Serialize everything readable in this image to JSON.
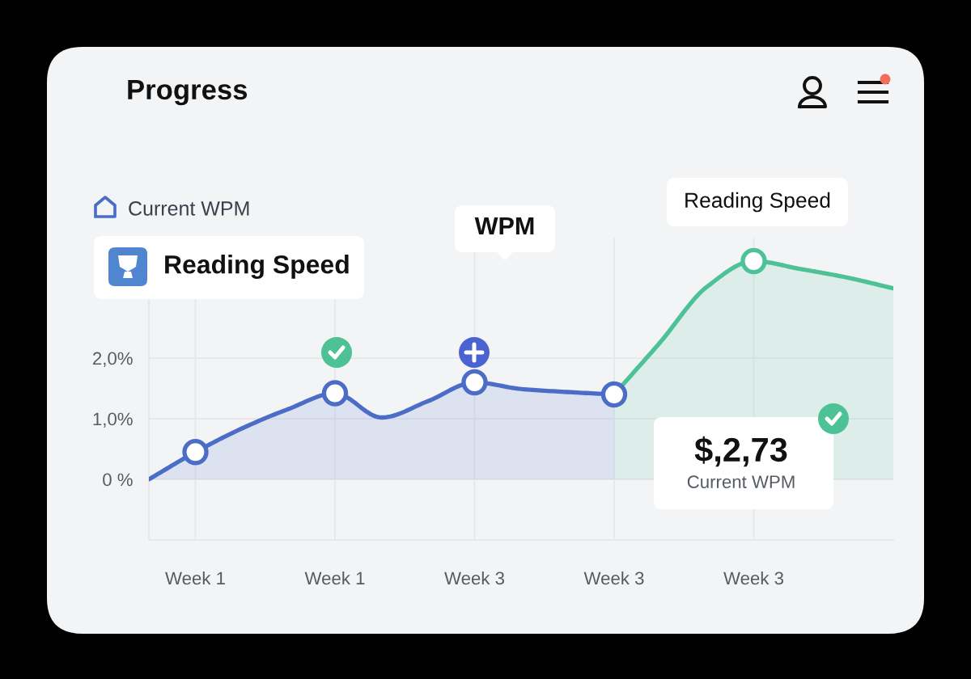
{
  "chart_data": {
    "type": "area",
    "title": "Progress",
    "categories": [
      null,
      "Week 1",
      null,
      null,
      "Week 1",
      null,
      null,
      "Week 3",
      null,
      null,
      "Week 3",
      null,
      null,
      "Week 3",
      null,
      null,
      null
    ],
    "series": [
      {
        "color": "#4b6cc7",
        "values": [
          0,
          0.45,
          0.84,
          1.16,
          1.42,
          1.02,
          1.29,
          1.6,
          1.49,
          1.44,
          1.4,
          null,
          null,
          null,
          null,
          null,
          null
        ]
      },
      {
        "color": "#4cc296",
        "values": [
          null,
          null,
          null,
          null,
          null,
          null,
          null,
          null,
          null,
          null,
          1.4,
          2.27,
          3.18,
          3.6,
          3.47,
          3.33,
          3.15
        ]
      },
      {
        "type": "scatter",
        "marker": "circle",
        "color": "#4b6cc7",
        "values": [
          null,
          0.45,
          null,
          null,
          1.42,
          null,
          null,
          1.6,
          null,
          null,
          1.4,
          null,
          null,
          null,
          null,
          null,
          null
        ]
      },
      {
        "type": "scatter",
        "marker": "circle",
        "color": "#4cc296",
        "values": [
          null,
          null,
          null,
          null,
          null,
          null,
          null,
          null,
          null,
          null,
          null,
          null,
          null,
          3.6,
          null,
          null,
          null
        ]
      }
    ],
    "ylim": [
      -1,
      4
    ],
    "yticks": [
      {
        "value": 0,
        "label": "0 %"
      },
      {
        "value": 1,
        "label": "1,0%"
      },
      {
        "value": 2,
        "label": "2,0%"
      }
    ],
    "grid": true,
    "annotations": [
      "Current WPM",
      "Reading Speed",
      "WPM",
      "Reading Speed",
      "$,2,73",
      "Current WPM"
    ]
  }
}
